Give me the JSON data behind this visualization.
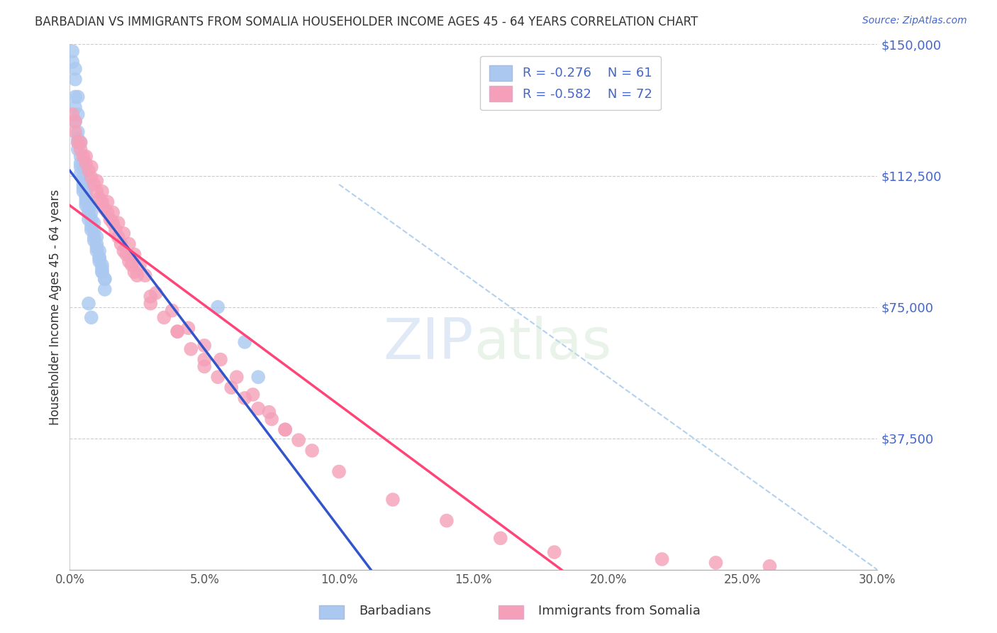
{
  "title": "BARBADIAN VS IMMIGRANTS FROM SOMALIA HOUSEHOLDER INCOME AGES 45 - 64 YEARS CORRELATION CHART",
  "source": "Source: ZipAtlas.com",
  "ylabel": "Householder Income Ages 45 - 64 years",
  "x_min": 0.0,
  "x_max": 0.3,
  "y_min": 0,
  "y_max": 150000,
  "y_ticks": [
    0,
    37500,
    75000,
    112500,
    150000
  ],
  "y_tick_labels": [
    "",
    "$37,500",
    "$75,000",
    "$112,500",
    "$150,000"
  ],
  "x_tick_labels": [
    "0.0%",
    "5.0%",
    "10.0%",
    "15.0%",
    "20.0%",
    "25.0%",
    "30.0%"
  ],
  "x_ticks": [
    0.0,
    0.05,
    0.1,
    0.15,
    0.2,
    0.25,
    0.3
  ],
  "legend_label1": "Barbadians",
  "legend_label2": "Immigrants from Somalia",
  "legend_R1": "R = -0.276",
  "legend_N1": "N = 61",
  "legend_R2": "R = -0.582",
  "legend_N2": "N = 72",
  "color_blue": "#aac8f0",
  "color_pink": "#f5a0b8",
  "color_blue_line": "#3355cc",
  "color_pink_line": "#ff4477",
  "color_title": "#333333",
  "color_source": "#4466cc",
  "color_ytick": "#4466cc",
  "color_xtick": "#555555",
  "color_dash": "#aaccee",
  "watermark_zip": "ZIP",
  "watermark_atlas": "atlas",
  "barbadians_x": [
    0.001,
    0.002,
    0.002,
    0.003,
    0.003,
    0.003,
    0.004,
    0.004,
    0.005,
    0.005,
    0.006,
    0.006,
    0.006,
    0.007,
    0.007,
    0.008,
    0.008,
    0.009,
    0.009,
    0.01,
    0.01,
    0.011,
    0.011,
    0.012,
    0.012,
    0.013,
    0.013,
    0.001,
    0.002,
    0.003,
    0.004,
    0.005,
    0.006,
    0.007,
    0.008,
    0.009,
    0.01,
    0.011,
    0.012,
    0.002,
    0.003,
    0.004,
    0.005,
    0.006,
    0.007,
    0.008,
    0.009,
    0.01,
    0.011,
    0.012,
    0.013,
    0.055,
    0.065,
    0.07,
    0.002,
    0.003,
    0.004,
    0.005,
    0.006,
    0.007,
    0.008
  ],
  "barbadians_y": [
    148000,
    143000,
    140000,
    135000,
    130000,
    125000,
    122000,
    118000,
    115000,
    112000,
    110000,
    108000,
    107000,
    105000,
    103000,
    102000,
    100000,
    99000,
    97000,
    95000,
    93000,
    91000,
    89000,
    87000,
    85000,
    83000,
    80000,
    145000,
    128000,
    120000,
    113000,
    108000,
    104000,
    100000,
    97000,
    94000,
    91000,
    88000,
    85000,
    132000,
    122000,
    115000,
    110000,
    106000,
    102000,
    98000,
    95000,
    92000,
    89000,
    86000,
    83000,
    75000,
    65000,
    55000,
    135000,
    123000,
    116000,
    109000,
    105000,
    76000,
    72000
  ],
  "somalia_x": [
    0.001,
    0.002,
    0.003,
    0.004,
    0.005,
    0.006,
    0.007,
    0.008,
    0.009,
    0.01,
    0.011,
    0.012,
    0.013,
    0.014,
    0.015,
    0.016,
    0.017,
    0.018,
    0.019,
    0.02,
    0.021,
    0.022,
    0.023,
    0.024,
    0.025,
    0.03,
    0.035,
    0.04,
    0.045,
    0.05,
    0.055,
    0.06,
    0.065,
    0.07,
    0.075,
    0.08,
    0.002,
    0.004,
    0.006,
    0.008,
    0.01,
    0.012,
    0.014,
    0.016,
    0.018,
    0.02,
    0.022,
    0.024,
    0.026,
    0.028,
    0.032,
    0.038,
    0.044,
    0.05,
    0.056,
    0.062,
    0.068,
    0.074,
    0.08,
    0.085,
    0.09,
    0.1,
    0.12,
    0.14,
    0.16,
    0.18,
    0.22,
    0.24,
    0.26,
    0.03,
    0.04,
    0.05
  ],
  "somalia_y": [
    130000,
    125000,
    122000,
    120000,
    118000,
    116000,
    114000,
    112000,
    110000,
    108000,
    106000,
    105000,
    103000,
    102000,
    100000,
    99000,
    97000,
    95000,
    93000,
    91000,
    90000,
    88000,
    87000,
    85000,
    84000,
    78000,
    72000,
    68000,
    63000,
    58000,
    55000,
    52000,
    49000,
    46000,
    43000,
    40000,
    128000,
    122000,
    118000,
    115000,
    111000,
    108000,
    105000,
    102000,
    99000,
    96000,
    93000,
    90000,
    87000,
    84000,
    79000,
    74000,
    69000,
    64000,
    60000,
    55000,
    50000,
    45000,
    40000,
    37000,
    34000,
    28000,
    20000,
    14000,
    9000,
    5000,
    3000,
    2000,
    1000,
    76000,
    68000,
    60000
  ]
}
